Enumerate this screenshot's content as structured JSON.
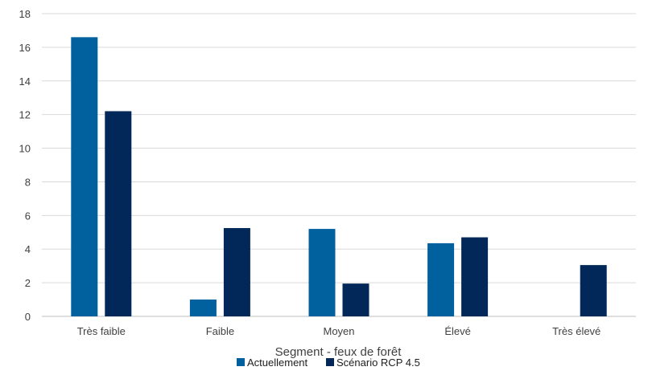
{
  "chart_data": {
    "type": "bar",
    "title": "",
    "xlabel": "Segment - feux de forêt",
    "ylabel": "",
    "categories": [
      "Très faible",
      "Faible",
      "Moyen",
      "Élevé",
      "Très élevé"
    ],
    "series": [
      {
        "name": "Actuellement",
        "color": "#01619e",
        "values": [
          16.6,
          1.0,
          5.2,
          4.35,
          0
        ]
      },
      {
        "name": "Scénario RCP 4.5",
        "color": "#012858",
        "values": [
          12.2,
          5.25,
          1.95,
          4.7,
          3.05
        ]
      }
    ],
    "ylim": [
      0,
      18
    ],
    "yticks": [
      0,
      2,
      4,
      6,
      8,
      10,
      12,
      14,
      16,
      18
    ],
    "grid": true,
    "legend_position": "bottom-center"
  }
}
